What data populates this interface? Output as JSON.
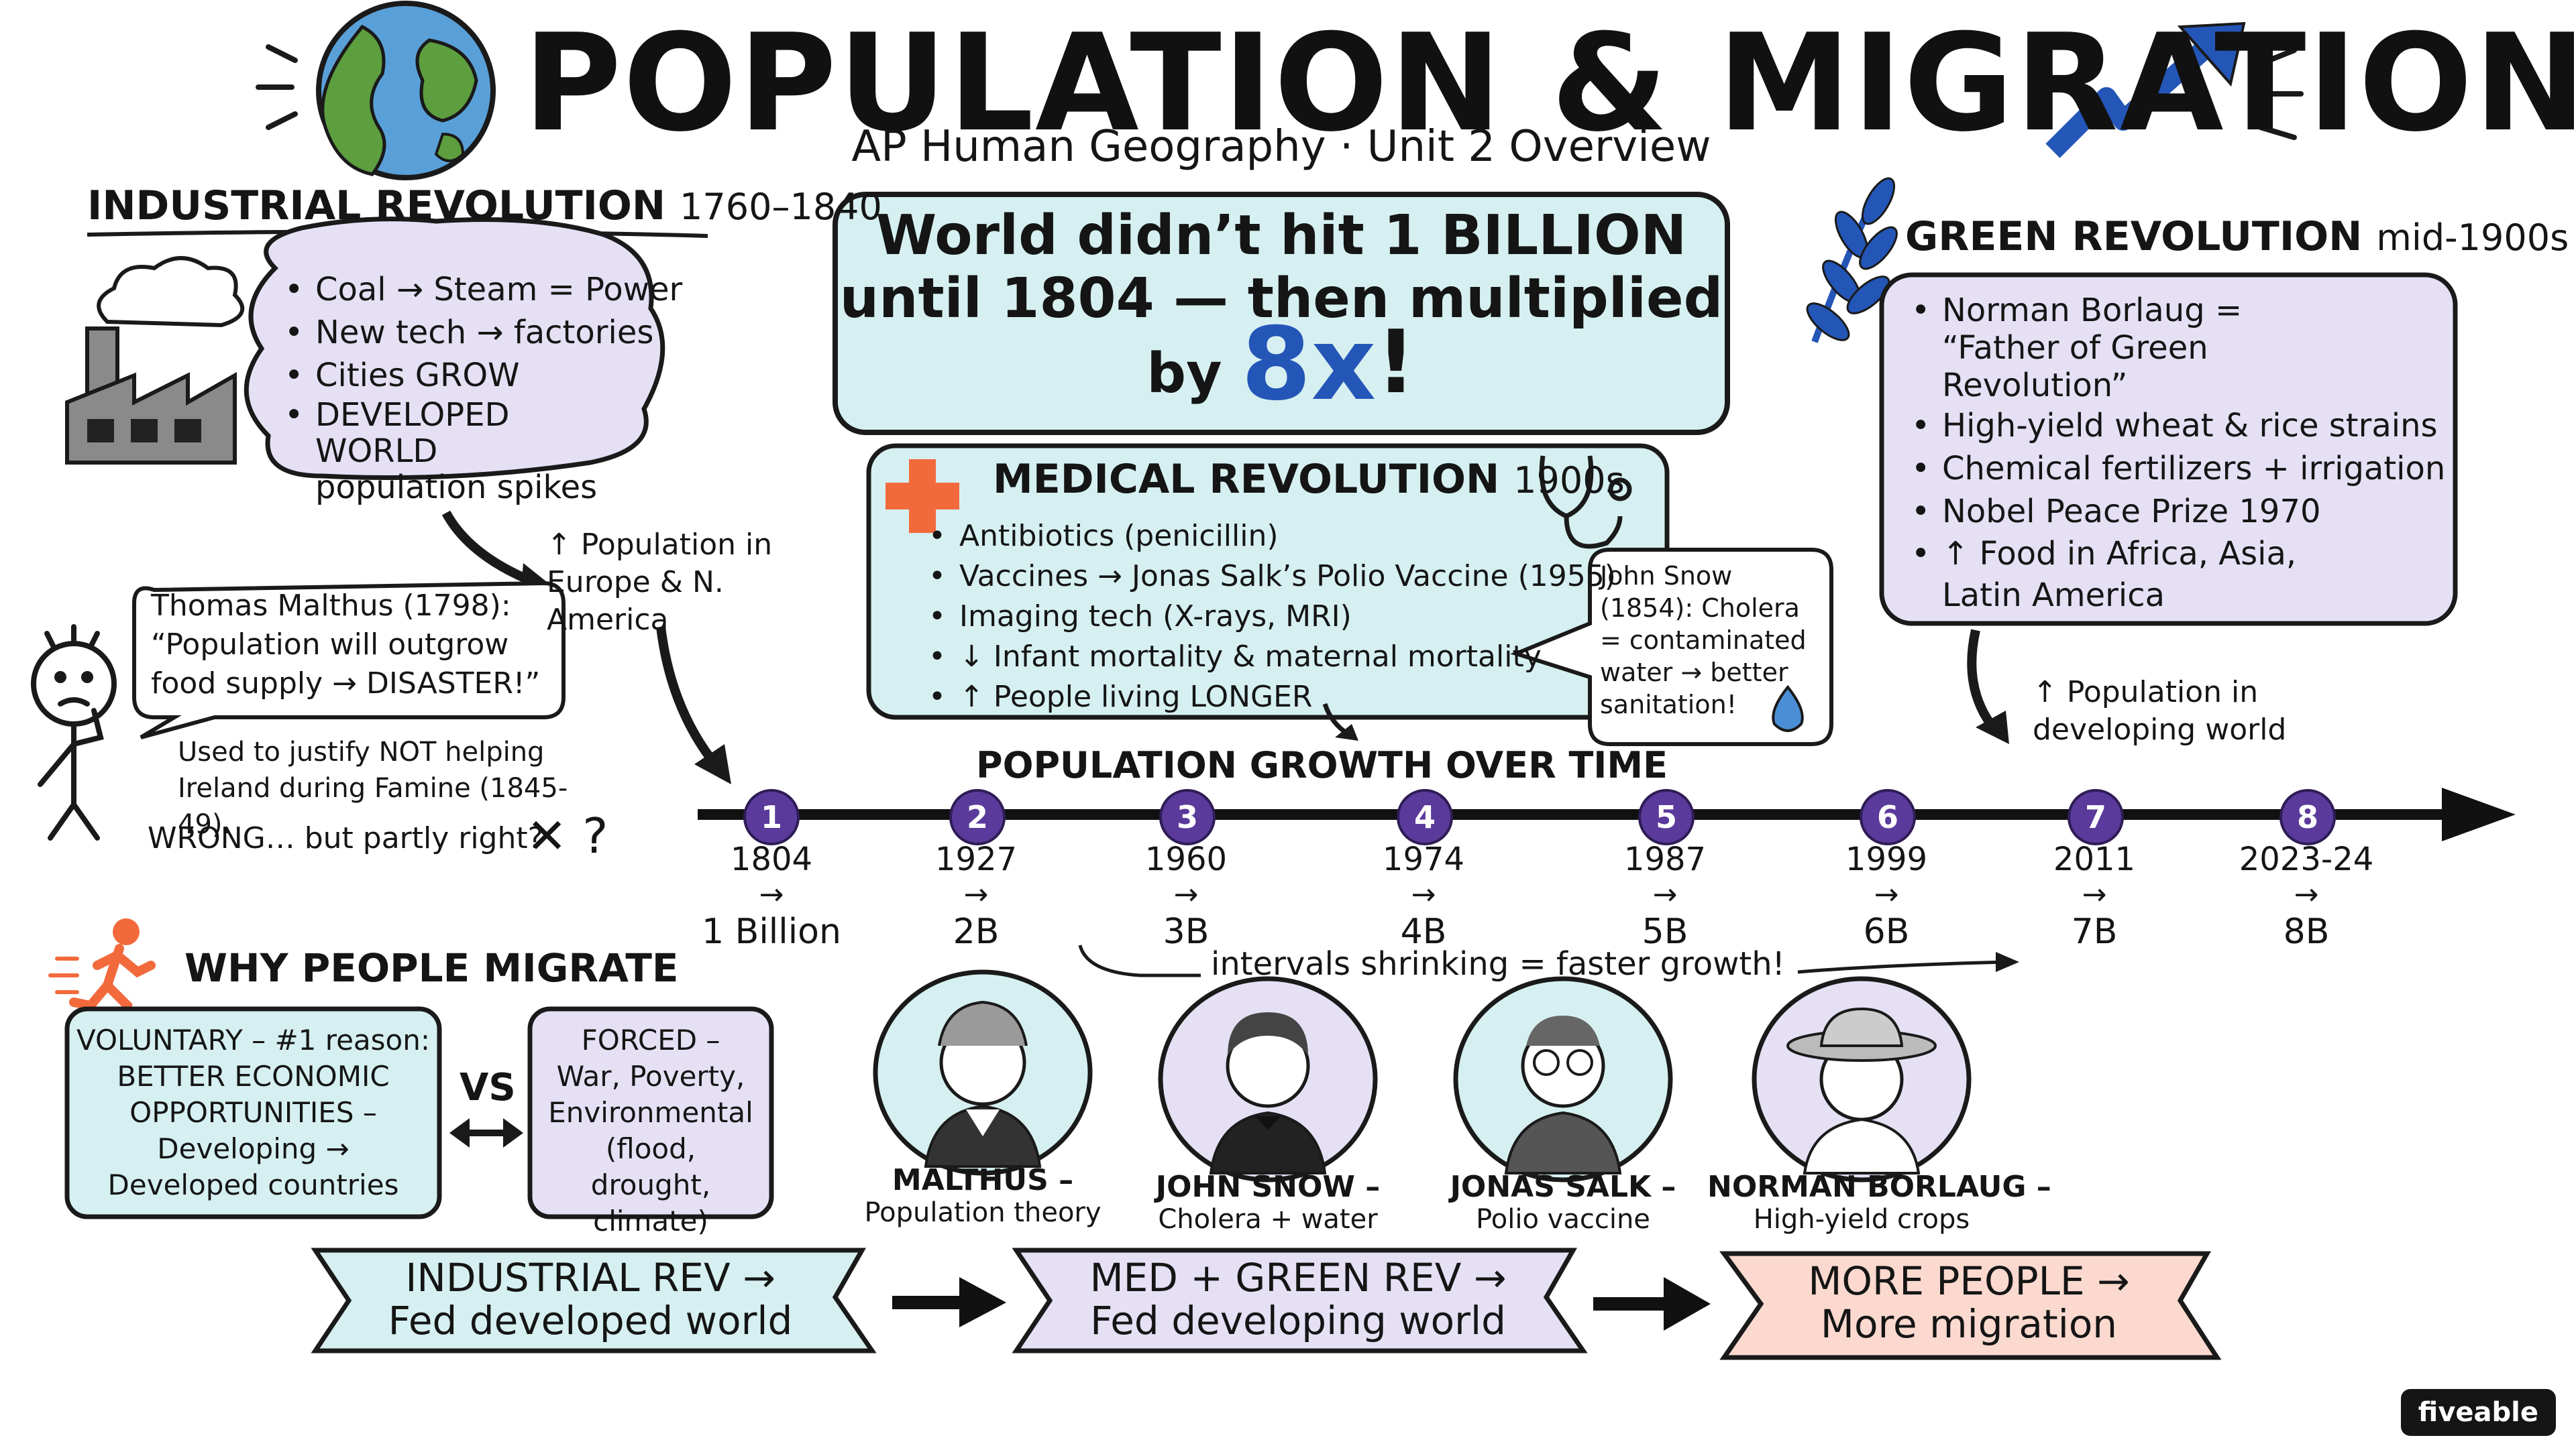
{
  "title": "POPULATION & MIGRATION",
  "subtitle": "AP Human Geography · Unit 2 Overview",
  "industrial": {
    "heading": "INDUSTRIAL REVOLUTION",
    "dates": "1760–1840",
    "items": [
      "Coal → Steam = Power",
      "New tech → factories",
      "Cities GROW",
      "DEVELOPED WORLD population spikes"
    ],
    "arrow_note": "↑ Population in Europe & N. America"
  },
  "malthus_quote": {
    "speaker": "Thomas Malthus (1798):",
    "quote": "“Population will outgrow food supply → DISASTER!”",
    "note": "Used to justify NOT helping Ireland during Famine (1845-49).",
    "verdict": "WRONG… but partly right?",
    "marks": "✕ ?"
  },
  "billion_box": {
    "line1": "World didn’t hit 1 BILLION",
    "line2": "until 1804 — then multiplied",
    "by": "by",
    "big": "8x",
    "excl": "!"
  },
  "medical": {
    "heading": "MEDICAL REVOLUTION",
    "dates": "1900s",
    "items": [
      "Antibiotics (penicillin)",
      "Vaccines → Jonas Salk’s Polio Vaccine (1955)",
      "Imaging tech (X-rays, MRI)",
      "↓ Infant mortality & maternal mortality",
      "↑ People living LONGER"
    ]
  },
  "snow_note": "John Snow (1854): Cholera = contaminated water → better sanitation!",
  "green": {
    "heading": "GREEN REVOLUTION",
    "dates": "mid-1900s",
    "items": [
      "Norman Borlaug = “Father of Green Revolution”",
      "High-yield wheat & rice strains",
      "Chemical fertilizers + irrigation",
      "Nobel Peace Prize 1970",
      "↑ Food in Africa, Asia, Latin America"
    ],
    "arrow_note": "↑ Population in developing world"
  },
  "timeline": {
    "heading": "POPULATION GROWTH OVER TIME",
    "arrow": "→",
    "points": [
      {
        "n": "1",
        "year": "1804",
        "pop": "1 Billion"
      },
      {
        "n": "2",
        "year": "1927",
        "pop": "2B"
      },
      {
        "n": "3",
        "year": "1960",
        "pop": "3B"
      },
      {
        "n": "4",
        "year": "1974",
        "pop": "4B"
      },
      {
        "n": "5",
        "year": "1987",
        "pop": "5B"
      },
      {
        "n": "6",
        "year": "1999",
        "pop": "6B"
      },
      {
        "n": "7",
        "year": "2011",
        "pop": "7B"
      },
      {
        "n": "8",
        "year": "2023-24",
        "pop": "8B"
      }
    ],
    "note": "intervals shrinking = faster growth!"
  },
  "migrate": {
    "heading": "WHY PEOPLE MIGRATE",
    "voluntary_a": "VOLUNTARY – #1 reason:",
    "voluntary_b": "BETTER ECONOMIC OPPORTUNITIES –",
    "voluntary_c": "Developing → Developed countries",
    "vs": "VS",
    "forced_a": "FORCED –",
    "forced_b": "War, Poverty, Environmental (flood, drought, climate)"
  },
  "portraits": [
    {
      "name": "MALTHUS –",
      "desc": "Population theory"
    },
    {
      "name": "JOHN SNOW –",
      "desc": "Cholera + water"
    },
    {
      "name": "JONAS SALK –",
      "desc": "Polio vaccine"
    },
    {
      "name": "NORMAN BORLAUG –",
      "desc": "High-yield crops"
    }
  ],
  "ribbons": [
    {
      "line1": "INDUSTRIAL REV →",
      "line2": "Fed developed world",
      "color": "#d6f0f1"
    },
    {
      "line1": "MED + GREEN REV →",
      "line2": "Fed developing world",
      "color": "#e6e0f5"
    },
    {
      "line1": "MORE PEOPLE →",
      "line2": "More migration",
      "color": "#fbd9cf"
    }
  ],
  "logo": "fiveable",
  "colors": {
    "teal": "#d6f0f1",
    "lavender": "#e6e0f5",
    "salmon": "#fbd9cf",
    "purple_node": "#5a3a9a",
    "blue_accent": "#2456b8",
    "red_cross": "#f26a3c"
  }
}
